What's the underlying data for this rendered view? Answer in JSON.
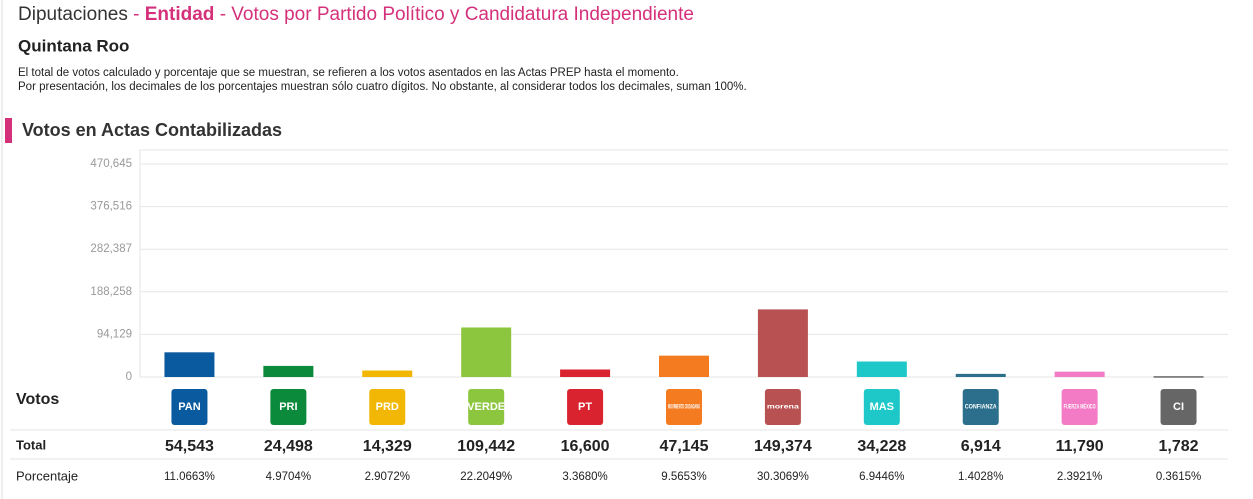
{
  "header": {
    "title_section": "Diputaciones",
    "title_sep1": "-",
    "title_level": "Entidad",
    "title_sep2": "-",
    "title_text": "Votos por Partido Político y Candidatura Independiente",
    "state": "Quintana Roo",
    "note1": "El total de votos calculado y porcentaje que se muestran, se refieren a los votos asentados en las Actas PREP hasta el momento.",
    "note2": "Por presentación, los decimales de los porcentajes muestran sólo cuatro dígitos. No obstante, al considerar todos los decimales, suman 100%."
  },
  "section_title": "Votos en Actas Contabilizadas",
  "row_labels": {
    "votes": "Votos",
    "total": "Total",
    "percent": "Porcentaje"
  },
  "chart_data": {
    "type": "bar",
    "categories": [
      "PAN",
      "PRI",
      "PRD",
      "VERDE",
      "PT",
      "MOVIMIENTO CIUDADANO",
      "morena",
      "MAS",
      "CONFIANZA",
      "FUERZA MÉXICO",
      "CI"
    ],
    "values": [
      54543,
      24498,
      14329,
      109442,
      16600,
      47145,
      149374,
      34228,
      6914,
      11790,
      1782
    ],
    "value_labels": [
      "54,543",
      "24,498",
      "14,329",
      "109,442",
      "16,600",
      "47,145",
      "149,374",
      "34,228",
      "6,914",
      "11,790",
      "1,782"
    ],
    "percentages": [
      "11.0663%",
      "4.9704%",
      "2.9072%",
      "22.2049%",
      "3.3680%",
      "9.5653%",
      "30.3069%",
      "6.9446%",
      "1.4028%",
      "2.3921%",
      "0.3615%"
    ],
    "colors": [
      "#0a5aa0",
      "#0b8a3c",
      "#f2b705",
      "#8cc63f",
      "#d9232e",
      "#f47b20",
      "#b85252",
      "#1fc8c8",
      "#2b6f8c",
      "#f37ac4",
      "#666666"
    ],
    "ylim": [
      0,
      470645
    ],
    "yticks": [
      0,
      {
        "value": 94129,
        "label": "94,129"
      },
      {
        "value": 188258,
        "label": "188,258"
      },
      {
        "value": 282387,
        "label": "282,387"
      },
      {
        "value": 376516,
        "label": "376,516"
      },
      {
        "value": 470645,
        "label": "470,645"
      }
    ],
    "grid": true
  }
}
